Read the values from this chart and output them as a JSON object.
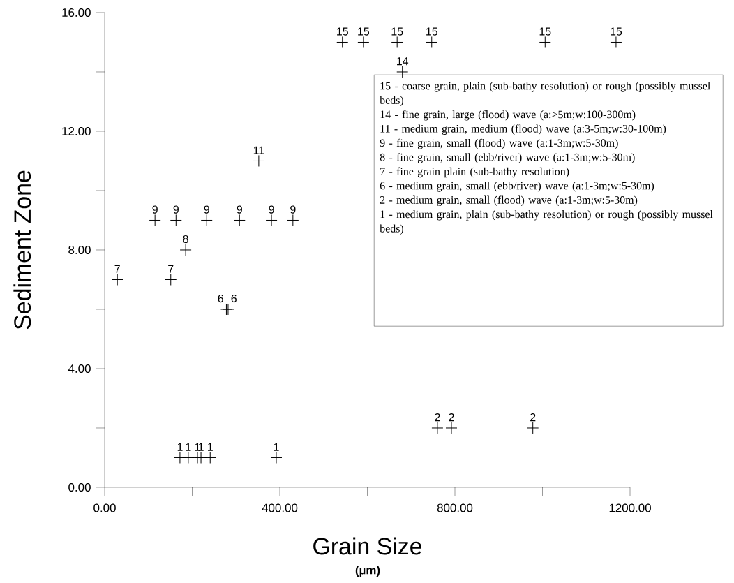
{
  "chart_data": {
    "type": "scatter",
    "xlabel": "Grain Size",
    "ylabel": "Sediment Zone",
    "annotations": [
      "(µm)",
      "15 - coarse grain, plain (sub-bathy resolution) or rough (possibly  mussel beds)",
      "14 - fine grain, large (flood) wave (a:>5m;w:100-300m)",
      "11 - medium grain, medium (flood) wave (a:3-5m;w:30-100m)",
      "9 - fine grain, small (flood) wave (a:1-3m;w:5-30m)",
      "8 - fine grain, small (ebb/river) wave (a:1-3m;w:5-30m)",
      "7 - fine grain plain (sub-bathy resolution)",
      "6 - medium grain, small (ebb/river) wave (a:1-3m;w:5-30m)",
      "2 - medium grain, small (flood) wave (a:1-3m;w:5-30m)",
      "1 - medium grain, plain (sub-bathy resolution) or rough (possibly mussel beds)"
    ],
    "x": [
      29,
      151,
      115,
      163,
      233,
      308,
      381,
      430,
      185,
      278,
      282,
      352,
      172,
      191,
      212,
      220,
      241,
      392,
      543,
      591,
      668,
      747,
      1006,
      1168,
      680,
      760,
      792,
      978
    ],
    "values": [
      7,
      7,
      9,
      9,
      9,
      9,
      9,
      9,
      8,
      6,
      6,
      11,
      1,
      1,
      1,
      1,
      1,
      1,
      15,
      15,
      15,
      15,
      15,
      15,
      14,
      2,
      2,
      2
    ],
    "color": "#000000",
    "marker": "cross",
    "data_labels": true,
    "xlim": [
      0,
      1200
    ],
    "ylim": [
      0,
      16
    ],
    "xticks": [
      {
        "value": 0,
        "label": "0.00"
      },
      {
        "value": 200,
        "label": null
      },
      {
        "value": 400,
        "label": "400.00"
      },
      {
        "value": 600,
        "label": null
      },
      {
        "value": 800,
        "label": "800.00"
      },
      {
        "value": 1000,
        "label": null
      },
      {
        "value": 1200,
        "label": "1200.00"
      }
    ],
    "yticks": [
      {
        "value": 0,
        "label": "0.00"
      },
      {
        "value": 2,
        "label": null
      },
      {
        "value": 4,
        "label": "4.00"
      },
      {
        "value": 6,
        "label": null
      },
      {
        "value": 8,
        "label": "8.00"
      },
      {
        "value": 10,
        "label": null
      },
      {
        "value": 12,
        "label": "12.00"
      },
      {
        "value": 14,
        "label": null
      },
      {
        "value": 16,
        "label": "16.00"
      }
    ]
  }
}
